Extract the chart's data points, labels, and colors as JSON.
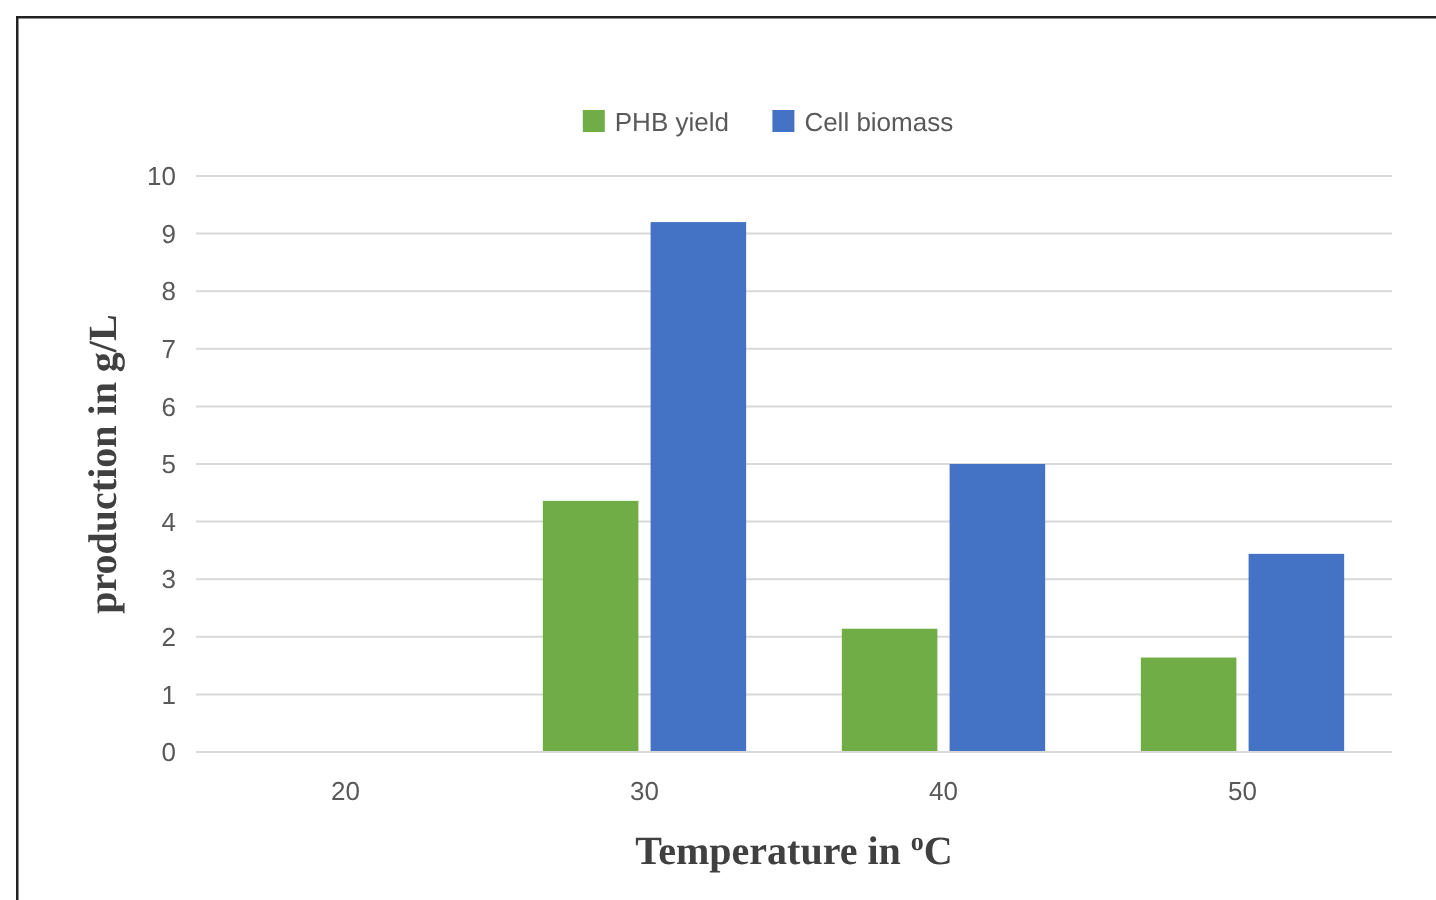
{
  "chart_data": {
    "type": "bar",
    "xlabel": "Temperature in $^{o}$C",
    "ylabel": "production in g/L",
    "categories": [
      "20",
      "30",
      "40",
      "50"
    ],
    "series": [
      {
        "name": "PHB yield",
        "color": "#70ad47",
        "values": [
          null,
          4.36,
          2.14,
          1.64
        ]
      },
      {
        "name": "Cell biomass",
        "color": "#4472c4",
        "values": [
          null,
          9.2,
          5.0,
          3.44
        ]
      }
    ],
    "ylim": [
      0,
      10
    ],
    "yticks": [
      0,
      1,
      2,
      3,
      4,
      5,
      6,
      7,
      8,
      9,
      10
    ],
    "grid": "y",
    "legend": "top"
  }
}
